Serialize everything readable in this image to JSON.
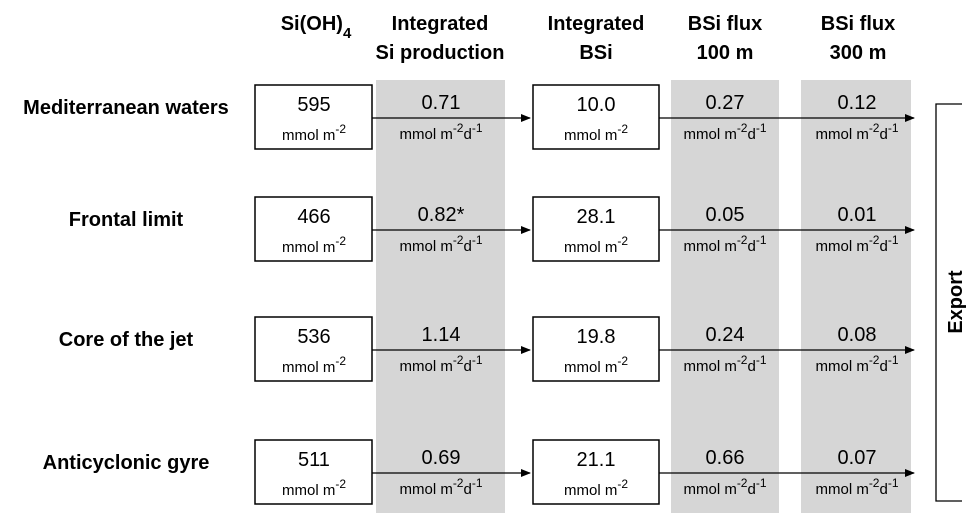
{
  "columns": {
    "sioh4": {
      "base": "Si(OH)",
      "sub": "4"
    },
    "integrated_si_production": [
      "Integrated",
      "Si production"
    ],
    "integrated_bsi": [
      "Integrated",
      "BSi"
    ],
    "bsi_flux_100": [
      "BSi flux",
      "100 m"
    ],
    "bsi_flux_300": [
      "BSi flux",
      "300 m"
    ]
  },
  "units": {
    "stock": {
      "base": "mmol m",
      "exp": "-2"
    },
    "rate": {
      "part1": "mmol m",
      "exp1": "-2",
      "part2": "d",
      "exp2": "-1"
    }
  },
  "export_label": "Export",
  "rows": [
    {
      "label": "Mediterranean waters",
      "sioh4": "595",
      "si_production": "0.71",
      "bsi": "10.0",
      "flux_100": "0.27",
      "flux_300": "0.12"
    },
    {
      "label": "Frontal limit",
      "sioh4": "466",
      "si_production": "0.82*",
      "bsi": "28.1",
      "flux_100": "0.05",
      "flux_300": "0.01"
    },
    {
      "label": "Core of the jet",
      "sioh4": "536",
      "si_production": "1.14",
      "bsi": "19.8",
      "flux_100": "0.24",
      "flux_300": "0.08"
    },
    {
      "label": "Anticyclonic gyre",
      "sioh4": "511",
      "si_production": "0.69",
      "bsi": "21.1",
      "flux_100": "0.66",
      "flux_300": "0.07"
    }
  ],
  "colors": {
    "band": "#d6d6d6",
    "line": "#000000",
    "background": "#ffffff"
  }
}
